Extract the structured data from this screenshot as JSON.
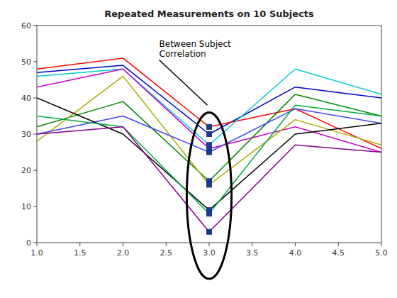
{
  "chart_data": {
    "type": "line",
    "title": "Repeated Measurements on 10 Subjects",
    "x": [
      1,
      2,
      3,
      4,
      5
    ],
    "xlim": [
      1,
      5
    ],
    "ylim": [
      0,
      60
    ],
    "xticks": [
      {
        "value": 1,
        "label": "1.0"
      },
      1.5,
      {
        "value": 2,
        "label": "2.0"
      },
      2.5,
      {
        "value": 3,
        "label": "3.0"
      },
      3.5,
      {
        "value": 4,
        "label": "4.0"
      },
      4.5,
      {
        "value": 5,
        "label": "5.0"
      }
    ],
    "yticks": [
      0,
      10,
      20,
      30,
      40,
      50,
      60
    ],
    "grid": false,
    "series": [
      {
        "type": "line",
        "color": "#0000CC",
        "values": [
          47,
          49,
          30,
          43,
          40
        ]
      },
      {
        "type": "line",
        "color": "#FF0000",
        "values": [
          48,
          51,
          32,
          37,
          26
        ]
      },
      {
        "type": "line",
        "color": "#00CCCC",
        "values": [
          46,
          48,
          27,
          48,
          41
        ]
      },
      {
        "type": "line",
        "color": "#CC00CC",
        "values": [
          43,
          48,
          26,
          32,
          25
        ]
      },
      {
        "type": "line",
        "color": "#008800",
        "values": [
          32,
          39,
          17,
          41,
          35
        ]
      },
      {
        "type": "line",
        "color": "#AAAA00",
        "values": [
          28,
          46,
          16,
          34,
          27
        ]
      },
      {
        "type": "line",
        "color": "#4444FF",
        "values": [
          30,
          35,
          25,
          37,
          33
        ]
      },
      {
        "type": "line",
        "color": "#000000",
        "values": [
          40,
          30,
          9,
          30,
          33
        ]
      },
      {
        "type": "line",
        "color": "#00AA44",
        "values": [
          35,
          32,
          8,
          38,
          35
        ]
      },
      {
        "type": "line",
        "color": "#880088",
        "values": [
          30,
          32,
          3,
          27,
          25
        ]
      },
      {
        "type": "scatter",
        "marker": "square",
        "color": "#1a3a8a",
        "x": [
          3,
          3,
          3,
          3,
          3,
          3,
          3,
          3,
          3,
          3
        ],
        "values": [
          30,
          32,
          27,
          26,
          17,
          16,
          25,
          9,
          8,
          3
        ]
      }
    ],
    "annotations": [
      {
        "text": "Between Subject\nCorrelation",
        "x": 2.42,
        "y": 50.5,
        "arrow_x": 2.98,
        "arrow_y": 38.0
      }
    ],
    "ellipse": {
      "x": 3.0,
      "y": 13.0,
      "width": 0.52,
      "height": 46.0
    }
  }
}
